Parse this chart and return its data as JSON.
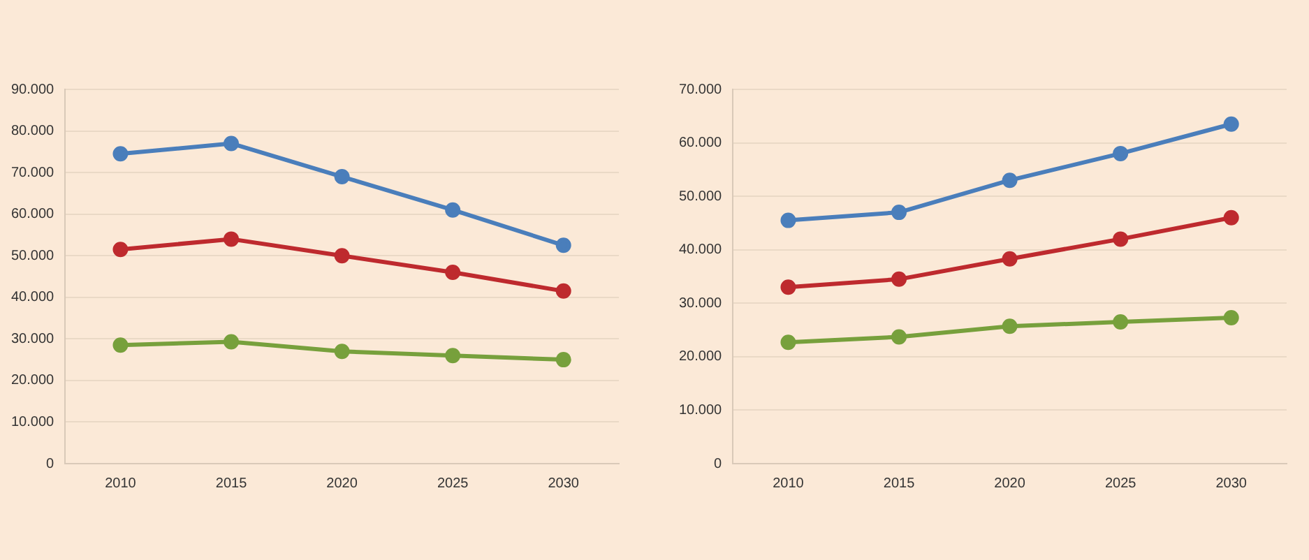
{
  "chart_data": [
    {
      "type": "line",
      "categories": [
        "2010",
        "2015",
        "2020",
        "2025",
        "2030"
      ],
      "series": [
        {
          "color": "#4a7ebb",
          "values": [
            74500,
            77000,
            69000,
            61000,
            52500
          ]
        },
        {
          "color": "#be2a2e",
          "values": [
            51500,
            54000,
            50000,
            46000,
            41500
          ]
        },
        {
          "color": "#77a03c",
          "values": [
            28500,
            29300,
            27000,
            26000,
            25000
          ]
        }
      ],
      "ylim": [
        0,
        90000
      ],
      "yticks": [
        {
          "value": 0,
          "label": "0"
        },
        {
          "value": 10000,
          "label": "10.000"
        },
        {
          "value": 20000,
          "label": "20.000"
        },
        {
          "value": 30000,
          "label": "30.000"
        },
        {
          "value": 40000,
          "label": "40.000"
        },
        {
          "value": 50000,
          "label": "50.000"
        },
        {
          "value": 60000,
          "label": "60.000"
        },
        {
          "value": 70000,
          "label": "70.000"
        },
        {
          "value": 80000,
          "label": "80.000"
        },
        {
          "value": 90000,
          "label": "90.000"
        }
      ],
      "grid": "y",
      "legend": false,
      "marker": "circle",
      "line_style": "solid"
    },
    {
      "type": "line",
      "categories": [
        "2010",
        "2015",
        "2020",
        "2025",
        "2030"
      ],
      "series": [
        {
          "color": "#4a7ebb",
          "values": [
            45500,
            47000,
            53000,
            58000,
            63500
          ]
        },
        {
          "color": "#be2a2e",
          "values": [
            33000,
            34500,
            38300,
            42000,
            46000
          ]
        },
        {
          "color": "#77a03c",
          "values": [
            22700,
            23700,
            25700,
            26500,
            27300
          ]
        }
      ],
      "ylim": [
        0,
        70000
      ],
      "yticks": [
        {
          "value": 0,
          "label": "0"
        },
        {
          "value": 10000,
          "label": "10.000"
        },
        {
          "value": 20000,
          "label": "20.000"
        },
        {
          "value": 30000,
          "label": "30.000"
        },
        {
          "value": 40000,
          "label": "40.000"
        },
        {
          "value": 50000,
          "label": "50.000"
        },
        {
          "value": 60000,
          "label": "60.000"
        },
        {
          "value": 70000,
          "label": "70.000"
        }
      ],
      "grid": "y",
      "legend": false,
      "marker": "circle",
      "line_style": "solid"
    }
  ]
}
